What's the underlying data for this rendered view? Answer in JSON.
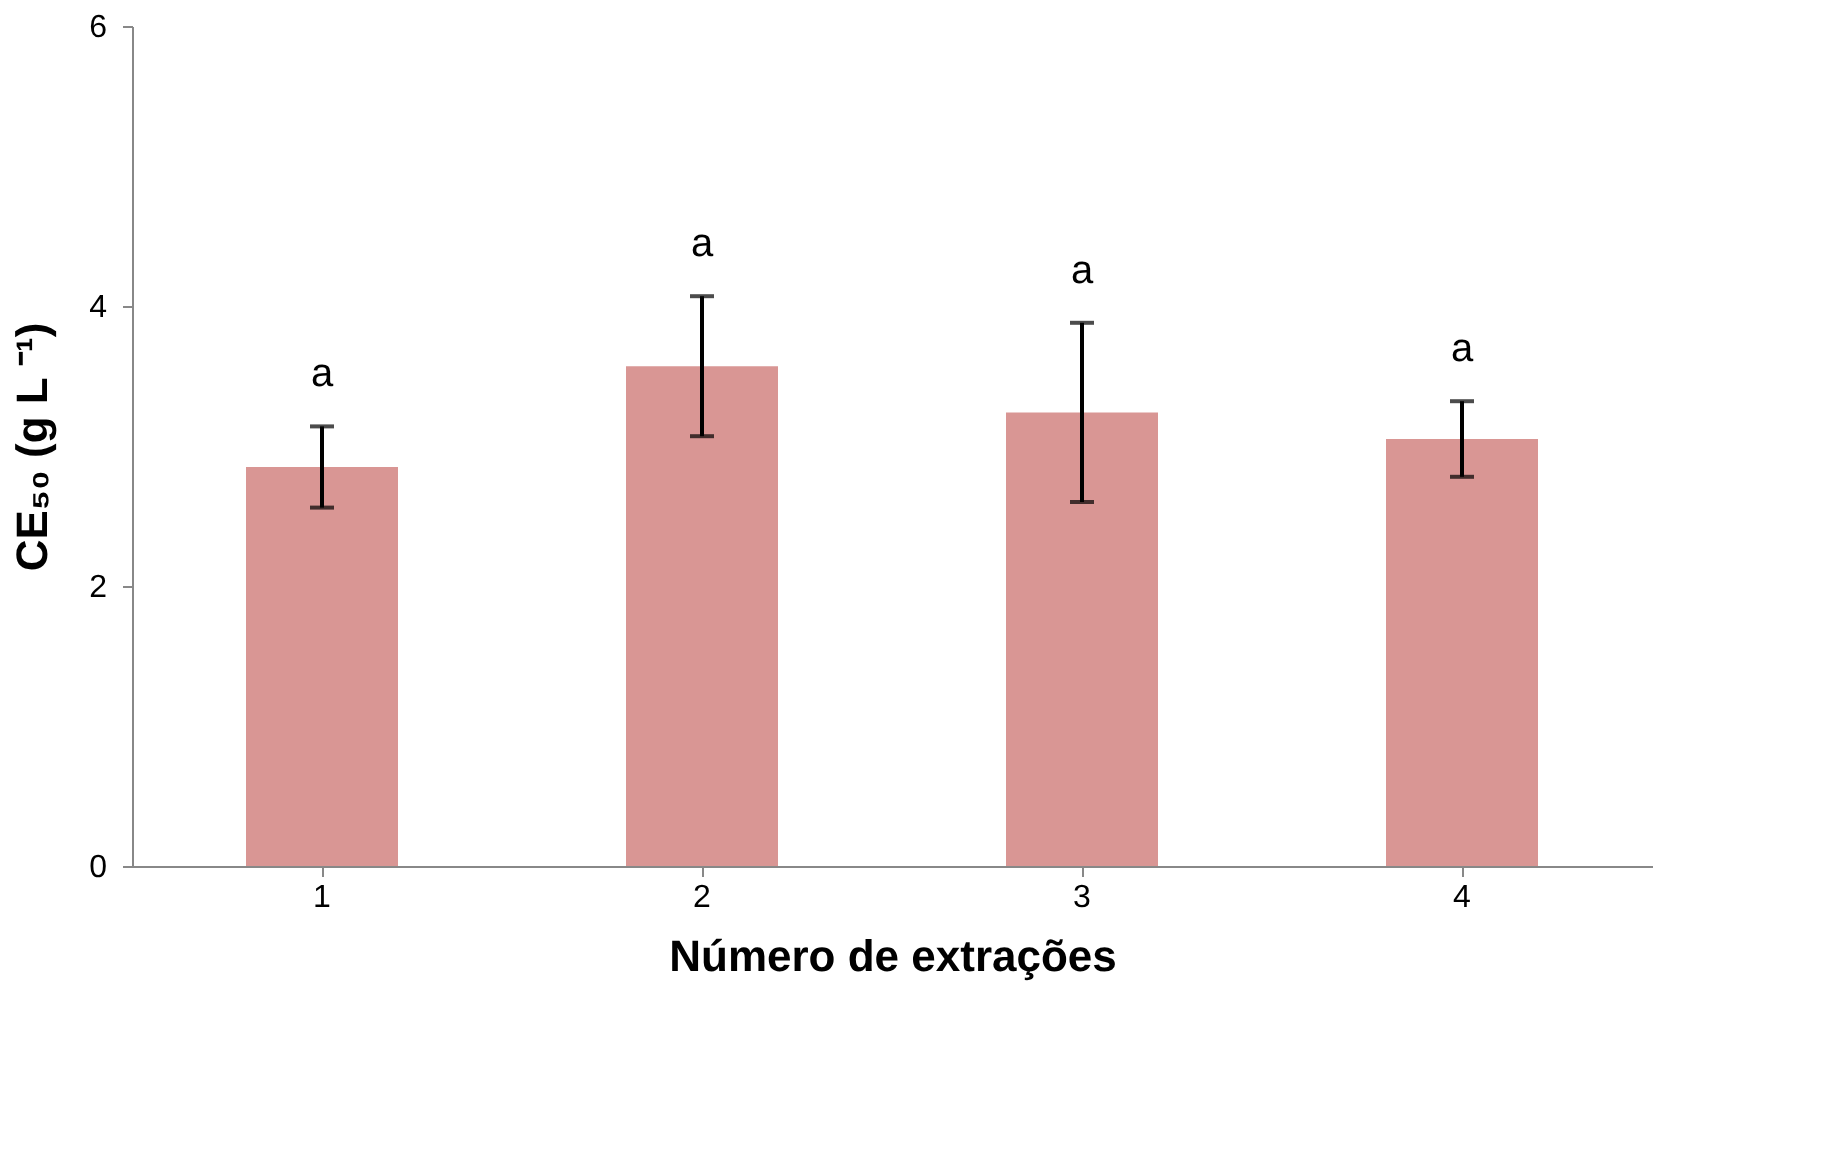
{
  "chart_data": {
    "type": "bar",
    "xlabel": "Número de extrações",
    "ylabel": "CE₅₀ (g L ⁻¹)",
    "categories": [
      "1",
      "2",
      "3",
      "4"
    ],
    "values": [
      2.85,
      3.57,
      3.24,
      3.05
    ],
    "errors": [
      0.29,
      0.5,
      0.64,
      0.27
    ],
    "color": "#d99694",
    "ylim": [
      0,
      6
    ],
    "yticks": [
      0,
      2,
      4,
      6
    ],
    "grid": false,
    "annotations": [
      "a",
      "a",
      "a",
      "a"
    ]
  }
}
